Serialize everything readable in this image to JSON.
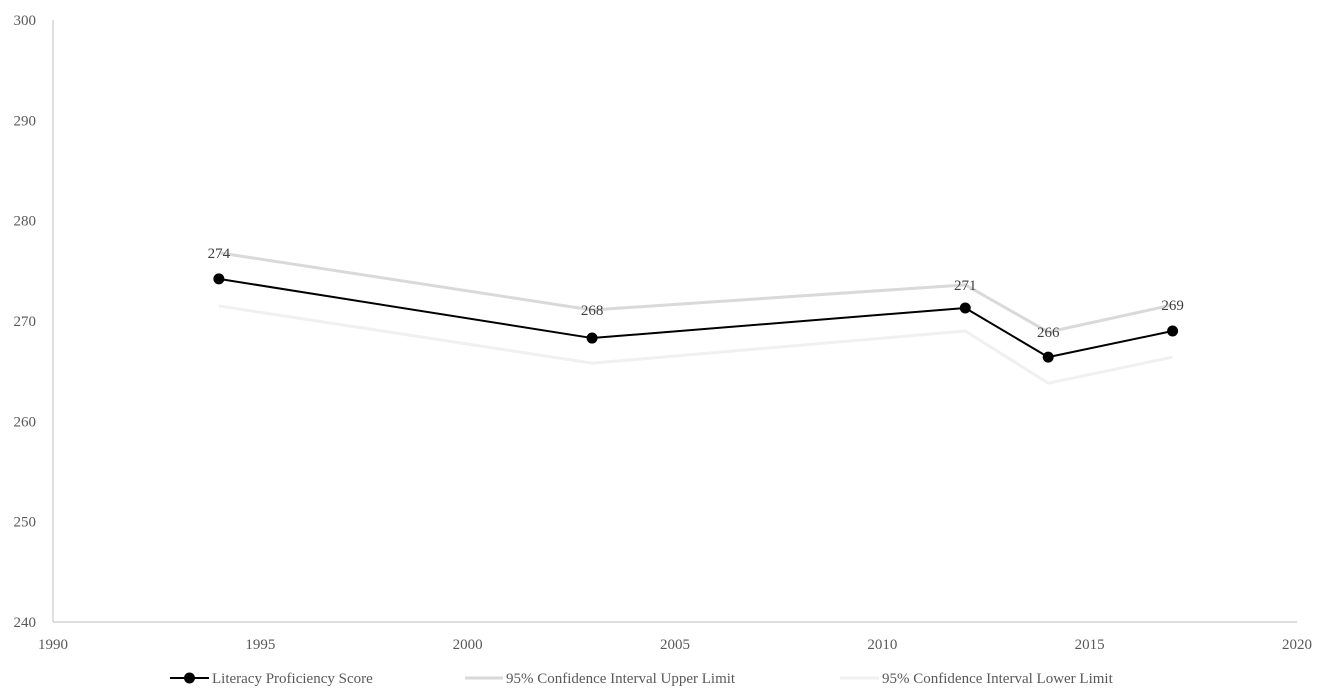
{
  "chart_data": {
    "type": "line",
    "title": "",
    "xlabel": "",
    "ylabel": "",
    "xlim": [
      1990,
      2020
    ],
    "ylim": [
      240,
      300
    ],
    "x_ticks": [
      1990,
      1995,
      2000,
      2005,
      2010,
      2015,
      2020
    ],
    "y_ticks": [
      240,
      250,
      260,
      270,
      280,
      290,
      300
    ],
    "x_tick_labels": [
      "1990",
      "1995",
      "2000",
      "2005",
      "2010",
      "2015",
      "2020"
    ],
    "y_tick_labels": [
      "240",
      "250",
      "260",
      "270",
      "280",
      "290",
      "300"
    ],
    "grid": false,
    "legend_position": "bottom",
    "series": [
      {
        "name": "Literacy Proficiency Score",
        "color": "#000000",
        "markers": true,
        "x": [
          1994,
          2003,
          2012,
          2014,
          2017
        ],
        "values": [
          274.2,
          268.3,
          271.3,
          266.4,
          269.0
        ]
      },
      {
        "name": "95% Confidence Interval Upper Limit",
        "color": "#d9d9d9",
        "markers": false,
        "x": [
          1994,
          2003,
          2012,
          2014,
          2017
        ],
        "values": [
          276.8,
          271.1,
          273.6,
          268.9,
          271.6
        ]
      },
      {
        "name": "95% Confidence Interval Lower Limit",
        "color": "#f0f0f0",
        "markers": false,
        "x": [
          1994,
          2003,
          2012,
          2014,
          2017
        ],
        "values": [
          271.5,
          265.8,
          269.0,
          263.8,
          266.4
        ]
      }
    ],
    "data_labels": [
      "274",
      "268",
      "271",
      "266",
      "269"
    ]
  }
}
